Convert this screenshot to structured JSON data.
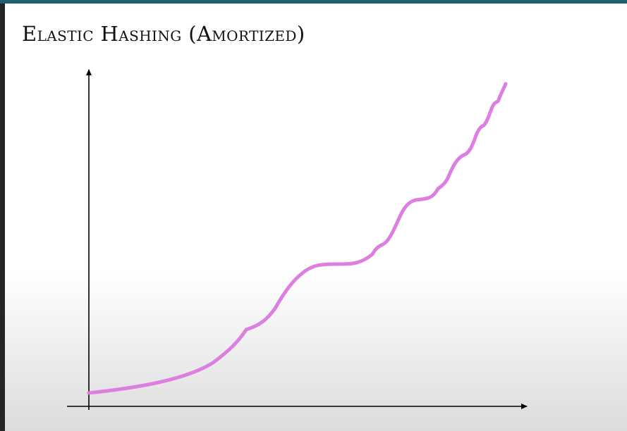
{
  "slide": {
    "title": "Elastic Hashing (Amortized)"
  },
  "colors": {
    "accent_bar": "#1f5f73",
    "curve": "#dc7fe0",
    "axes": "#000000"
  },
  "diagram": {
    "type": "sketch-curve",
    "x_axis_label": "",
    "y_axis_label": "",
    "curve_shape": "slowly increasing then stepwise increasing with growing bumps"
  }
}
